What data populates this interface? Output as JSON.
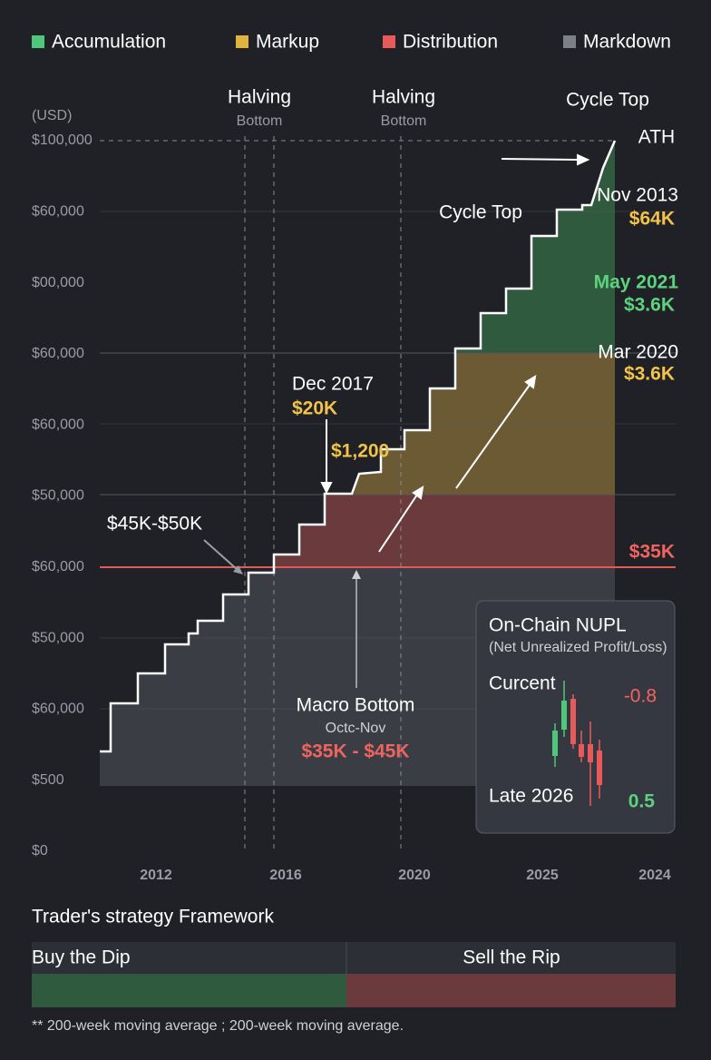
{
  "legend": [
    "Accumulation",
    "Markup",
    "Distribution",
    "Markdown"
  ],
  "axis": {
    "unit": "(USD)",
    "y_labels": [
      "$100,000",
      "$60,000",
      "$00,000",
      "$60,000",
      "$60,000",
      "$50,000",
      "$60,000",
      "$50,000",
      "$60,000",
      "$500",
      "$0"
    ],
    "x_labels": [
      "2012",
      "2016",
      "2020",
      "2025",
      "2024"
    ]
  },
  "annotations": {
    "halving_1": "Halving",
    "bottom_1": "Bottom",
    "halving_2": "Halving",
    "bottom_2": "Bottom",
    "cycle_top_1": "Cycle Top",
    "ath": "ATH",
    "cycle_top_2": "Cycle Top",
    "nov_2013": "Nov 2013",
    "nov_2013_value": "$64K",
    "may_2021": "May 2021",
    "may_2021_value": "$3.6K",
    "mar_2020": "Mar 2020",
    "mar_2020_value": "$3.6K",
    "dec_2017": "Dec 2017",
    "dec_2017_value": "$20K",
    "price_1200": "$1,200",
    "range": "$45K-$50K",
    "level": "$35K",
    "macro_bottom": "Macro Bottom",
    "macro_period": "Octc-Nov",
    "macro_range": "$35K - $45K"
  },
  "nupl": {
    "title": "On-Chain NUPL",
    "subtitle": "(Net Unrealized Profit/Loss)",
    "current_label": "Curcent",
    "current_value": "-0.8",
    "late_label": "Late 2026",
    "late_value": "0.5"
  },
  "framework": {
    "title": "Trader's strategy Framework",
    "left": "Buy the Dip",
    "right": "Sell the Rip"
  },
  "footnote": "** 200-week moving average ; 200-week moving average."
}
